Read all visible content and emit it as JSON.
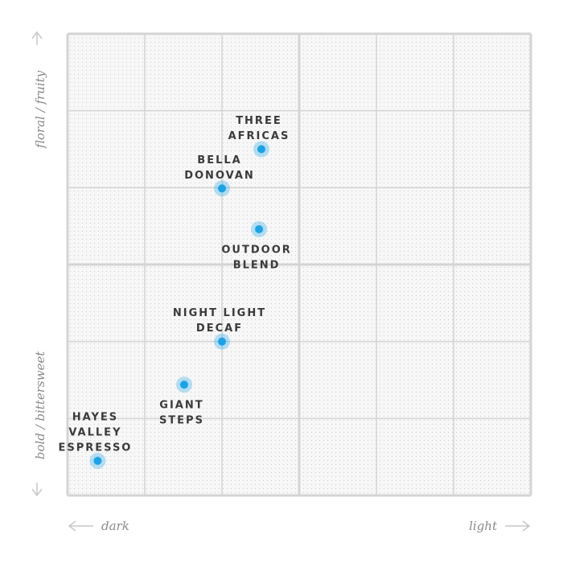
{
  "chart_data": {
    "type": "scatter",
    "x_label_low": "dark",
    "x_label_high": "light",
    "y_label_low": "bold / bittersweet",
    "y_label_high": "floral / fruity",
    "xlim": [
      0,
      6
    ],
    "ylim": [
      0,
      6
    ],
    "grid": true,
    "color": "#1aa3e8",
    "labels": [
      [
        "THREE",
        "AFRICAS"
      ],
      [
        "BELLA",
        "DONOVAN"
      ],
      [
        "OUTDOOR",
        "BLEND"
      ],
      [
        "NIGHT LIGHT",
        "DECAF"
      ],
      [
        "GIANT",
        "STEPS"
      ],
      [
        "HAYES",
        "VALLEY",
        "ESPRESSO"
      ]
    ],
    "x": [
      2.51,
      2.0,
      2.48,
      2.0,
      1.51,
      0.39
    ],
    "values": [
      4.5,
      3.99,
      3.46,
      2.0,
      1.44,
      0.45
    ]
  }
}
